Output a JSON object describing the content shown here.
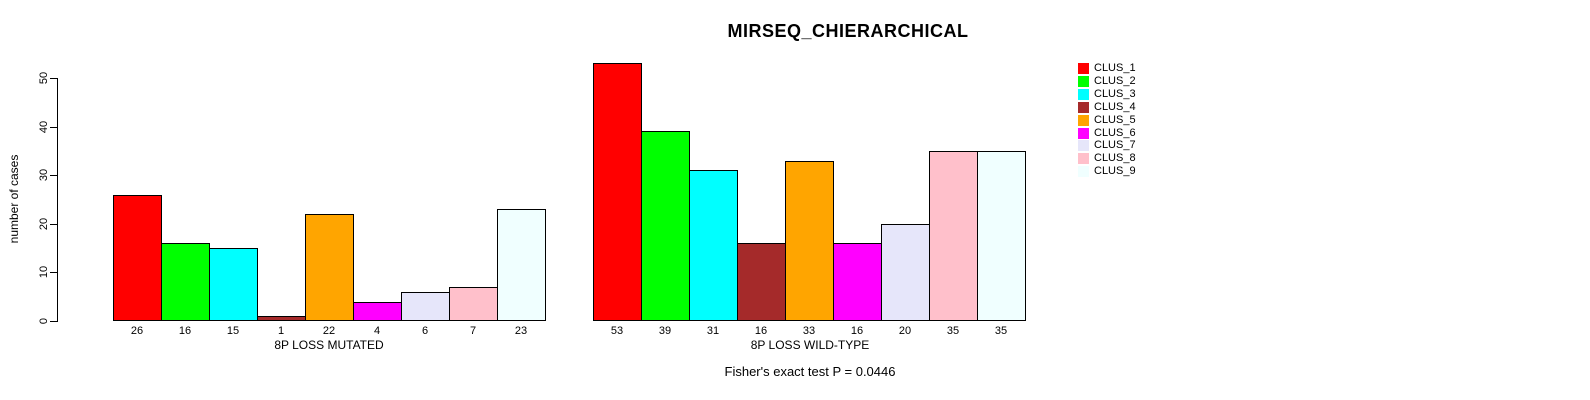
{
  "title": "MIRSEQ_CHIERARCHICAL",
  "caption": "Fisher's exact test P = 0.0446",
  "y_axis": {
    "label": "number of cases",
    "ticks": [
      0,
      10,
      20,
      30,
      40,
      50
    ],
    "range": [
      0,
      50
    ]
  },
  "legend": {
    "position": "right",
    "items": [
      {
        "label": "CLUS_1",
        "color": "#FF0000"
      },
      {
        "label": "CLUS_2",
        "color": "#00FF00"
      },
      {
        "label": "CLUS_3",
        "color": "#00FFFF"
      },
      {
        "label": "CLUS_4",
        "color": "#A52A2A"
      },
      {
        "label": "CLUS_5",
        "color": "#FFA500"
      },
      {
        "label": "CLUS_6",
        "color": "#FF00FF"
      },
      {
        "label": "CLUS_7",
        "color": "#E6E6FA"
      },
      {
        "label": "CLUS_8",
        "color": "#FFC0CB"
      },
      {
        "label": "CLUS_9",
        "color": "#F0FFFF"
      }
    ]
  },
  "chart_data": [
    {
      "type": "bar",
      "xlabel": "8P LOSS MUTATED",
      "ylabel": "number of cases",
      "ylim": [
        0,
        50
      ],
      "grid": false,
      "categories": [
        "CLUS_1",
        "CLUS_2",
        "CLUS_3",
        "CLUS_4",
        "CLUS_5",
        "CLUS_6",
        "CLUS_7",
        "CLUS_8",
        "CLUS_9"
      ],
      "values": [
        26,
        16,
        15,
        1,
        22,
        4,
        6,
        7,
        23
      ],
      "bar_labels": [
        "26",
        "16",
        "15",
        "1",
        "22",
        "4",
        "6",
        "7",
        "23"
      ]
    },
    {
      "type": "bar",
      "xlabel": "8P LOSS WILD-TYPE",
      "ylabel": "number of cases",
      "ylim": [
        0,
        50
      ],
      "grid": false,
      "categories": [
        "CLUS_1",
        "CLUS_2",
        "CLUS_3",
        "CLUS_4",
        "CLUS_5",
        "CLUS_6",
        "CLUS_7",
        "CLUS_8",
        "CLUS_9"
      ],
      "values": [
        53,
        39,
        31,
        16,
        33,
        16,
        20,
        35,
        35
      ],
      "bar_labels": [
        "53",
        "39",
        "31",
        "16",
        "33",
        "16",
        "20",
        "35",
        "35"
      ]
    }
  ]
}
